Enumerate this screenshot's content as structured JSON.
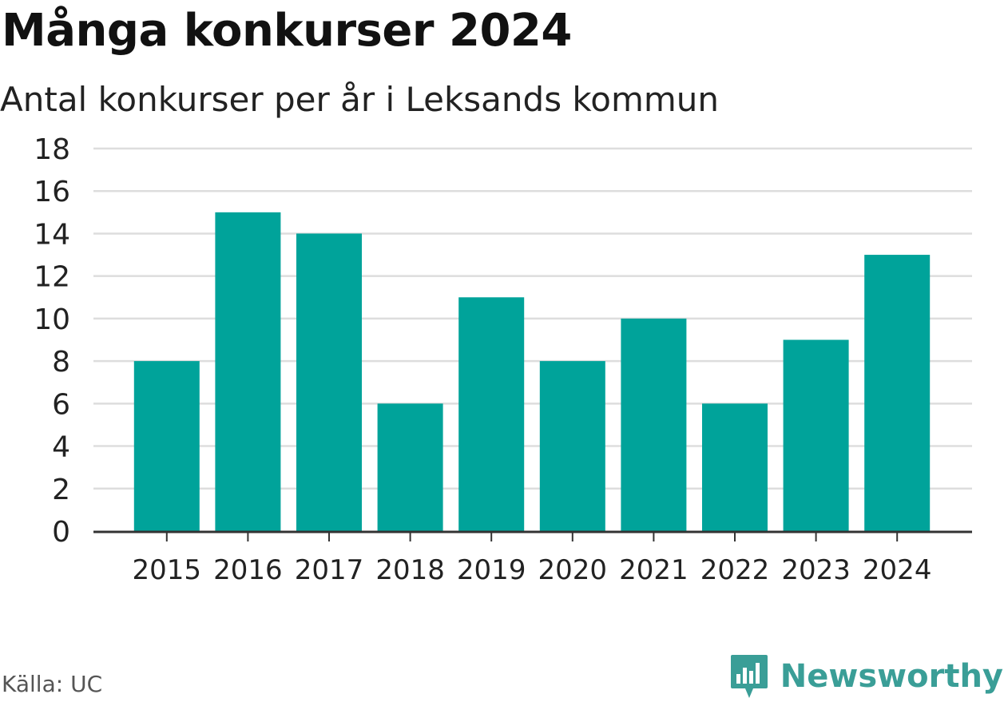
{
  "header": {
    "title": "Många konkurser 2024",
    "subtitle": "Antal konkurser per år i Leksands kommun"
  },
  "footer": {
    "source": "Källa: UC",
    "brand": "Newsworthy"
  },
  "colors": {
    "bar": "#00a39a",
    "grid": "#dddddd",
    "axis": "#333333",
    "brand": "#3a9e97"
  },
  "chart_data": {
    "type": "bar",
    "categories": [
      "2015",
      "2016",
      "2017",
      "2018",
      "2019",
      "2020",
      "2021",
      "2022",
      "2023",
      "2024"
    ],
    "values": [
      8,
      15,
      14,
      6,
      11,
      8,
      10,
      6,
      9,
      13
    ],
    "ylim": [
      0,
      18
    ],
    "yticks": [
      0,
      2,
      4,
      6,
      8,
      10,
      12,
      14,
      16,
      18
    ],
    "grid": true,
    "legend": "none"
  }
}
